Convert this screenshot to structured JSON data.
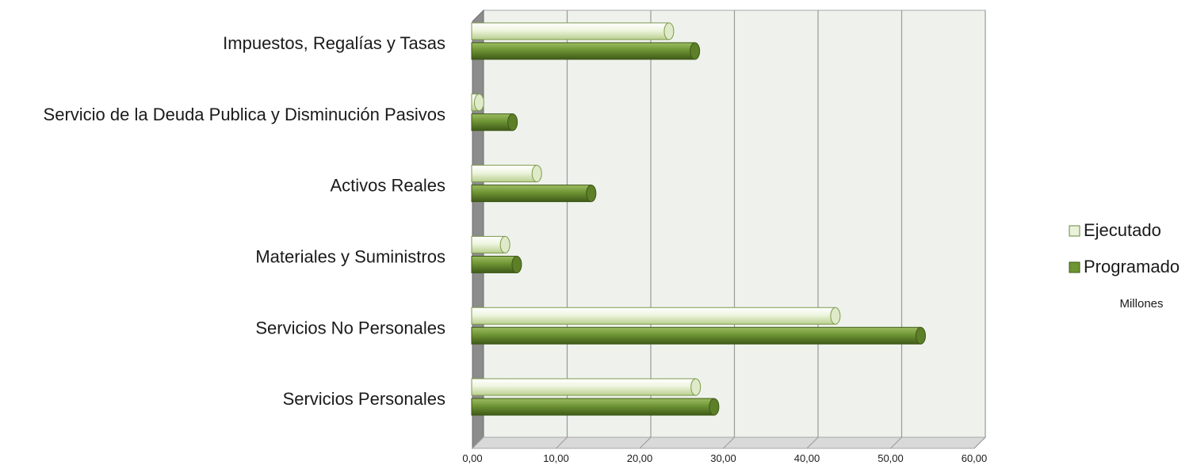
{
  "chart_data": {
    "type": "bar",
    "orientation": "horizontal",
    "categories": [
      "Impuestos, Regalías y Tasas",
      "Servicio de la Deuda Publica y Disminución Pasivos",
      "Activos Reales",
      "Materiales y Suministros",
      "Servicios No Personales",
      "Servicios Personales"
    ],
    "series": [
      {
        "name": "Ejecutado",
        "color": "#eaf3d9",
        "values": [
          23.5,
          0.8,
          7.7,
          3.9,
          43.4,
          26.7
        ]
      },
      {
        "name": "Programado",
        "color": "#6e9434",
        "values": [
          26.6,
          4.8,
          14.2,
          5.3,
          53.6,
          28.9
        ]
      }
    ],
    "xlim": [
      0,
      60
    ],
    "xticks": [
      "0,00",
      "10,00",
      "20,00",
      "30,00",
      "40,00",
      "50,00",
      "60,00"
    ],
    "unit_label": "Millones",
    "grid": true,
    "legend_position": "right"
  }
}
